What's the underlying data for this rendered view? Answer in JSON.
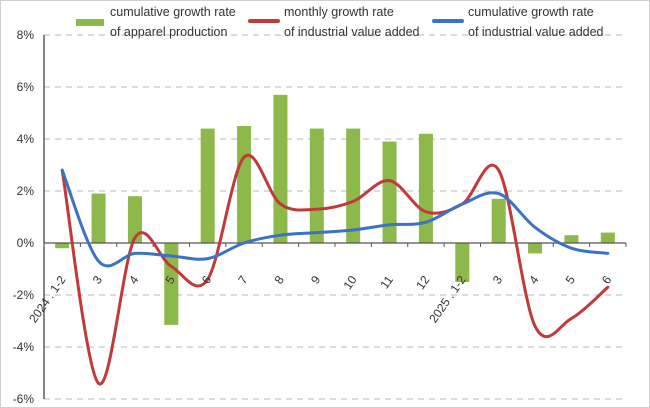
{
  "chart_data": {
    "type": "bar+line",
    "categories": [
      "2024 . 1-2",
      "3",
      "4",
      "5",
      "6",
      "7",
      "8",
      "9",
      "10",
      "11",
      "12",
      "2025 . 1-2",
      "3",
      "4",
      "5",
      "6"
    ],
    "series": [
      {
        "name": "cumulative growth rate of apparel production",
        "type": "bar",
        "color": "#8db84a",
        "values": [
          -0.2,
          1.9,
          1.8,
          -3.15,
          4.4,
          4.5,
          5.7,
          4.4,
          4.4,
          3.9,
          4.2,
          -1.5,
          1.7,
          -0.4,
          0.3,
          0.4
        ]
      },
      {
        "name": "monthly growth rate of industrial value added",
        "type": "line",
        "color": "#c0393b",
        "values": [
          2.8,
          -5.4,
          0.2,
          -0.9,
          -1.4,
          3.3,
          1.5,
          1.3,
          1.6,
          2.4,
          1.2,
          1.5,
          2.8,
          -3.2,
          -2.9,
          -1.7
        ]
      },
      {
        "name": "cumulative growth rate of industrial value added",
        "type": "line",
        "color": "#3a72c4",
        "values": [
          2.8,
          -0.7,
          -0.4,
          -0.5,
          -0.6,
          0.0,
          0.3,
          0.4,
          0.5,
          0.7,
          0.8,
          1.5,
          1.9,
          0.6,
          -0.2,
          -0.4
        ]
      }
    ],
    "legend": {
      "placement": "top",
      "items": [
        {
          "line1": "cumulative growth rate",
          "line2": "of apparel production"
        },
        {
          "line1": "monthly growth rate",
          "line2": "of industrial value added"
        },
        {
          "line1": "cumulative growth rate",
          "line2": "of industrial value added"
        }
      ]
    },
    "yticks": [
      "8%",
      "6%",
      "4%",
      "2%",
      "0%",
      "-2%",
      "-4%",
      "-6%"
    ],
    "ylim": [
      -6,
      8
    ],
    "grid": true,
    "title": "",
    "xlabel": "",
    "ylabel": ""
  }
}
